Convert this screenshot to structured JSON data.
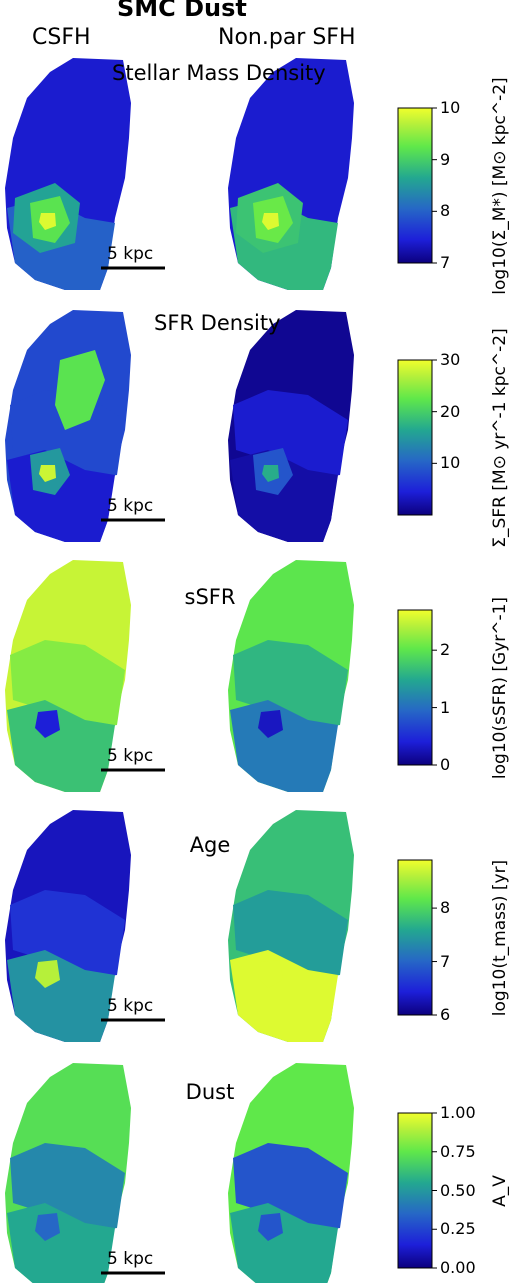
{
  "figure": {
    "title": "SMC Dust",
    "column_titles": [
      "CSFH",
      "Non.par SFH"
    ],
    "scale_bar_label": "5 kpc"
  },
  "chart_data": [
    {
      "type": "heatmap",
      "row_title": "Stellar Mass Density",
      "colorbar_label": "log10(Σ_M*) [M⊙ kpc^-2]",
      "colormap": "plasma-like blue→green→yellow",
      "clim": [
        7,
        10
      ],
      "colorbar_ticks": [
        7,
        8,
        9,
        10
      ],
      "panels": [
        {
          "model": "CSFH",
          "bright_core": 9.9,
          "core_ring": 9.2,
          "inner": 8.6,
          "south": 8.0,
          "north": 7.4
        },
        {
          "model": "Non.par SFH",
          "bright_core": 9.9,
          "core_ring": 9.3,
          "inner": 8.9,
          "south": 8.8,
          "north": 7.4
        }
      ]
    },
    {
      "type": "heatmap",
      "row_title": "SFR Density",
      "colorbar_label": "Σ_SFR [M⊙ yr^-1 kpc^-2]",
      "colormap": "plasma-like blue→green→yellow",
      "clim": [
        0,
        30
      ],
      "colorbar_ticks": [
        10,
        20,
        30
      ],
      "panels": [
        {
          "model": "CSFH",
          "bright_core": 28,
          "north_arm": 22,
          "core_ring": 15,
          "mid": 8,
          "south": 4
        },
        {
          "model": "Non.par SFH",
          "bright_core": 17,
          "core_ring": 9,
          "mid": 4,
          "south": 2,
          "north": 1
        }
      ]
    },
    {
      "type": "heatmap",
      "row_title": "sSFR",
      "colorbar_label": "log10(sSFR) [Gyr^-1]",
      "colormap": "plasma-like blue→green→yellow",
      "clim": [
        0,
        2.7
      ],
      "colorbar_ticks": [
        0,
        1,
        2
      ],
      "panels": [
        {
          "model": "CSFH",
          "core": 0.4,
          "north": 2.5,
          "mid": 2.2,
          "south": 1.7
        },
        {
          "model": "Non.par SFH",
          "core": 0.3,
          "north": 2.0,
          "mid": 1.6,
          "south": 1.1
        }
      ]
    },
    {
      "type": "heatmap",
      "row_title": "Age",
      "colorbar_label": "log10(t_mass) [yr]",
      "colormap": "plasma-like blue→green→yellow",
      "clim": [
        6,
        8.9
      ],
      "colorbar_ticks": [
        6,
        7,
        8
      ],
      "panels": [
        {
          "model": "CSFH",
          "core": 8.6,
          "north": 6.3,
          "mid": 6.6,
          "south": 7.4
        },
        {
          "model": "Non.par SFH",
          "core": 8.8,
          "north": 7.8,
          "mid": 7.5,
          "south": 8.8
        }
      ]
    },
    {
      "type": "heatmap",
      "row_title": "Dust",
      "colorbar_label": "A_V",
      "colormap": "plasma-like blue→green→yellow",
      "clim": [
        0,
        1
      ],
      "colorbar_ticks": [
        0.0,
        0.25,
        0.5,
        0.75,
        1.0
      ],
      "panels": [
        {
          "model": "CSFH",
          "core": 0.35,
          "north": 0.72,
          "mid": 0.45,
          "south": 0.55
        },
        {
          "model": "Non.par SFH",
          "core": 0.3,
          "north": 0.75,
          "mid": 0.3,
          "south": 0.55
        }
      ]
    }
  ]
}
